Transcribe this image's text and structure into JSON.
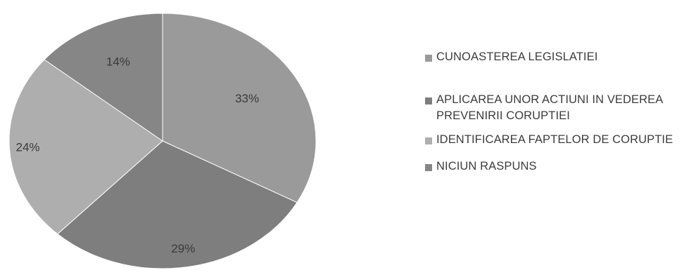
{
  "chart_data": {
    "type": "pie",
    "slices": [
      {
        "label": "CUNOASTEREA LEGISLATIEI",
        "value": 33,
        "display": "33%",
        "color": "#9a9a9a"
      },
      {
        "label": "APLICAREA UNOR ACTIUNI IN VEDEREA PREVENIRII CORUPTIEI",
        "value": 29,
        "display": "29%",
        "color": "#7e7e7e"
      },
      {
        "label": "IDENTIFICAREA FAPTELOR DE CORUPTIE",
        "value": 24,
        "display": "24%",
        "color": "#aeaeae"
      },
      {
        "label": "NICIUN RASPUNS",
        "value": 14,
        "display": "14%",
        "color": "#868686"
      }
    ],
    "start_angle_deg": 0,
    "direction": "clockwise",
    "legend_position": "right"
  }
}
